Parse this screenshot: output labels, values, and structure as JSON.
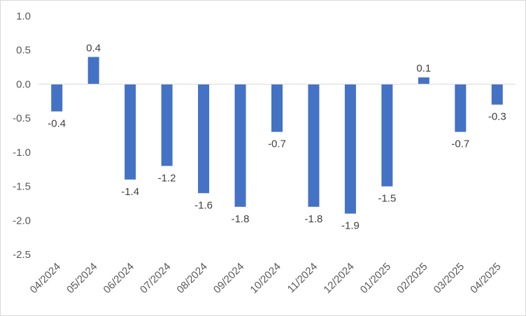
{
  "chart_data": {
    "type": "bar",
    "categories": [
      "04/2024",
      "05/2024",
      "06/2024",
      "07/2024",
      "08/2024",
      "09/2024",
      "10/2024",
      "11/2024",
      "12/2024",
      "01/2025",
      "02/2025",
      "03/2025",
      "04/2025"
    ],
    "values": [
      -0.4,
      0.4,
      -1.4,
      -1.2,
      -1.6,
      -1.8,
      -0.7,
      -1.8,
      -1.9,
      -1.5,
      0.1,
      -0.7,
      -0.3
    ],
    "data_labels": [
      "-0.4",
      "0.4",
      "-1.4",
      "-1.2",
      "-1.6",
      "-1.8",
      "-0.7",
      "-1.8",
      "-1.9",
      "-1.5",
      "0.1",
      "-0.7",
      "-0.3"
    ],
    "y_ticks": [
      "1.0",
      "0.5",
      "0.0",
      "-0.5",
      "-1.0",
      "-1.5",
      "-2.0",
      "-2.5"
    ],
    "ylim": [
      -2.5,
      1.0
    ],
    "grid": false,
    "legend": "none",
    "bar_color": "#4472c4",
    "axis_color": "#d9d9d9"
  }
}
